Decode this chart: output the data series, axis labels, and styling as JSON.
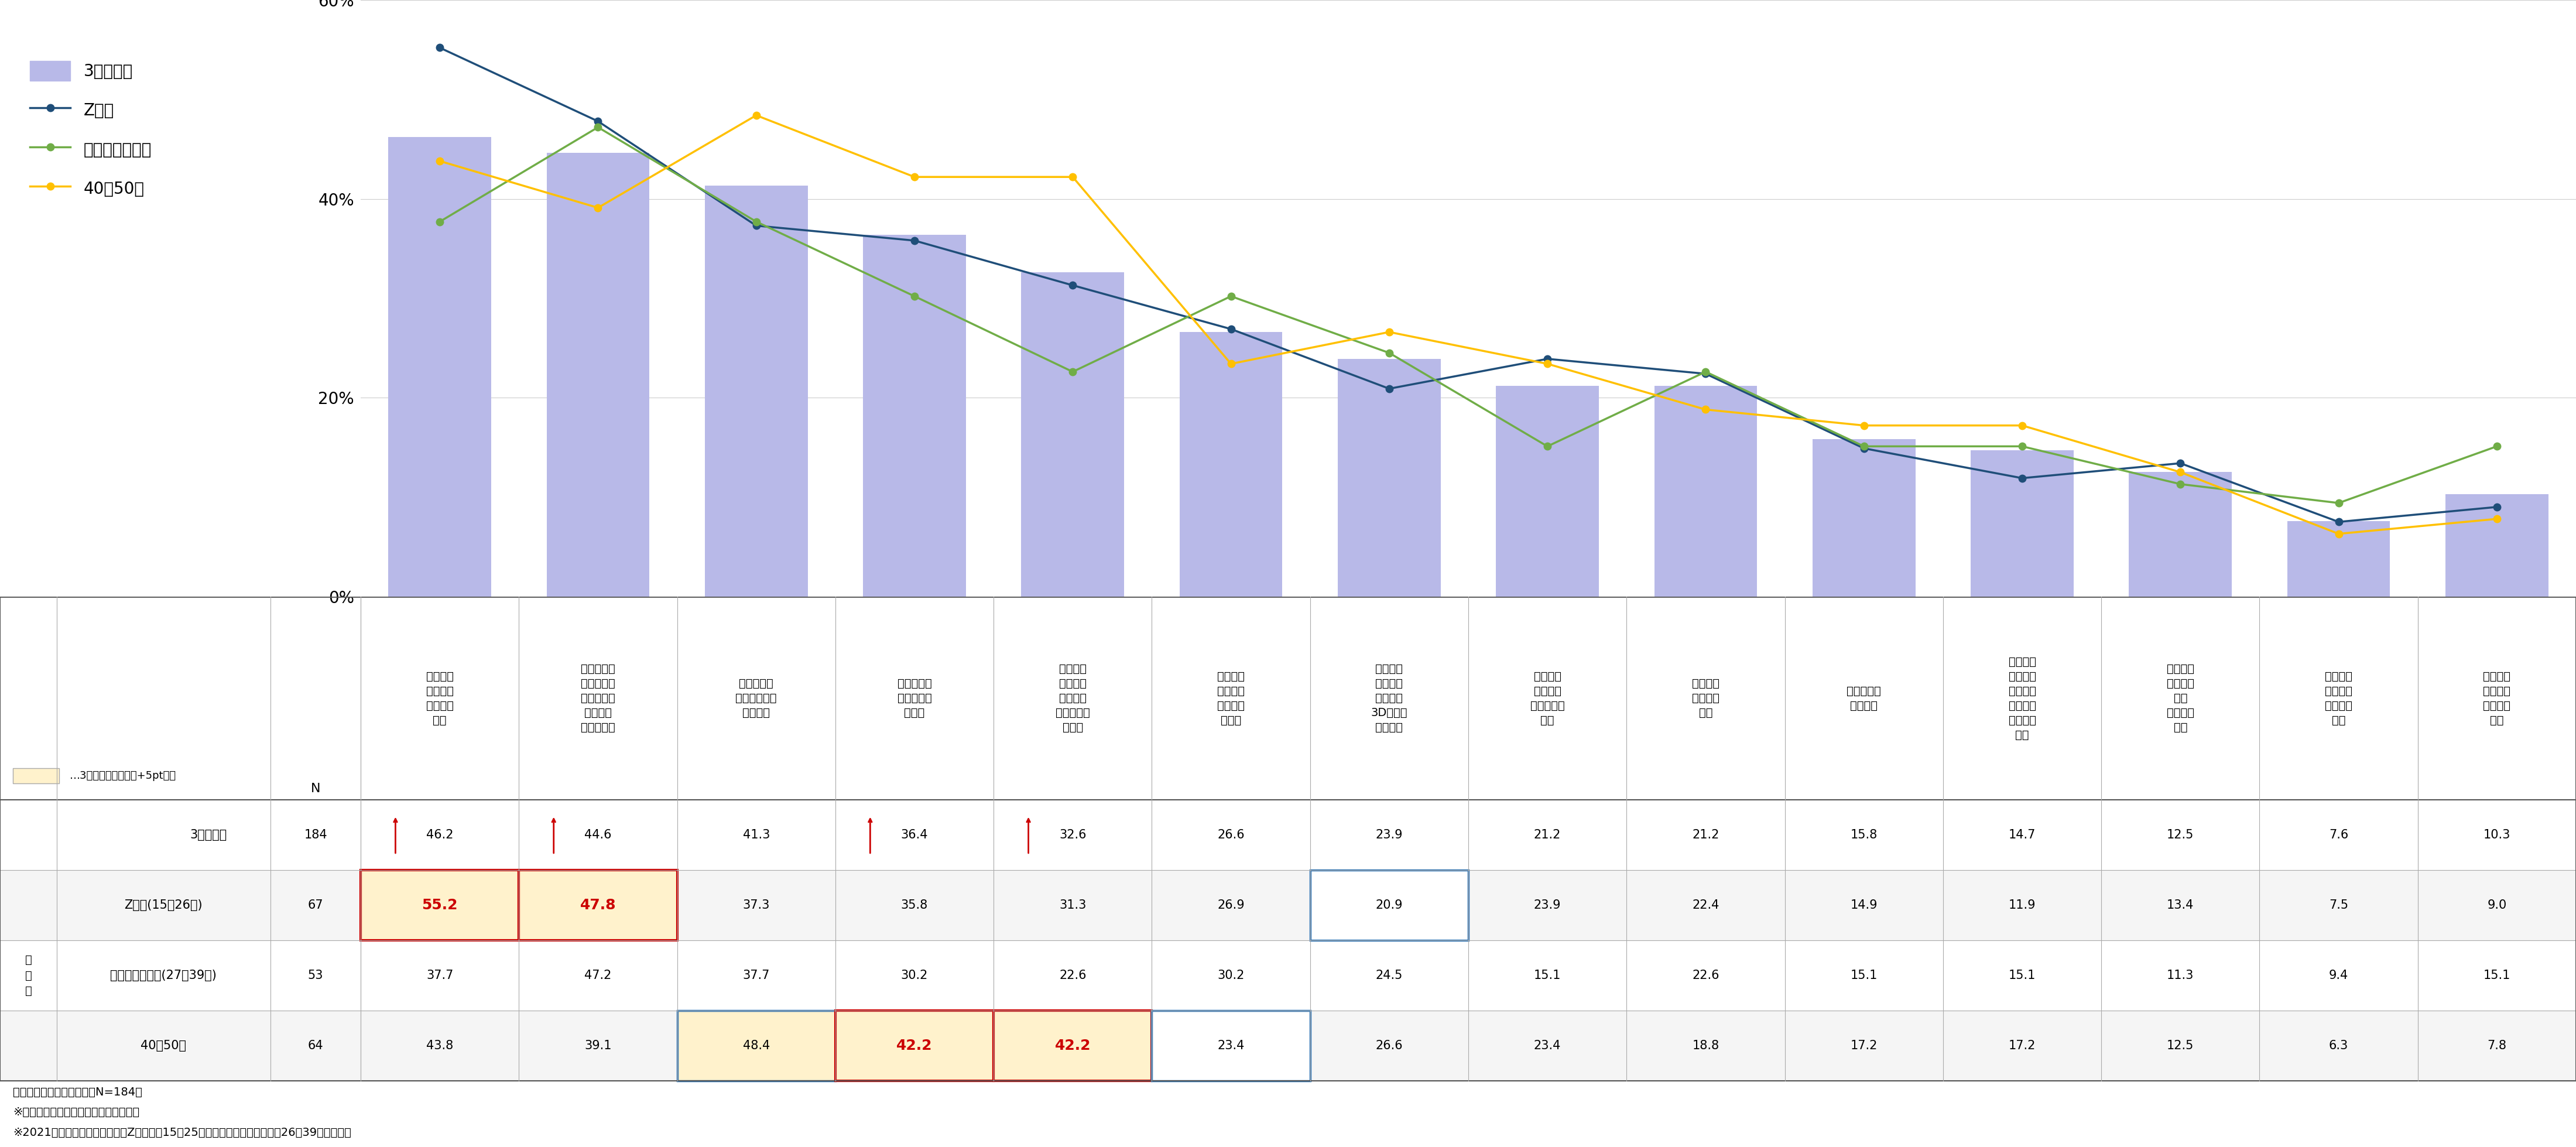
{
  "bar_values": [
    46.2,
    44.6,
    41.3,
    36.4,
    32.6,
    26.6,
    23.9,
    21.2,
    21.2,
    15.8,
    14.7,
    12.5,
    7.6,
    10.3
  ],
  "z_values": [
    55.2,
    47.8,
    37.3,
    35.8,
    31.3,
    26.9,
    20.9,
    23.9,
    22.4,
    14.9,
    11.9,
    13.4,
    7.5,
    9.0
  ],
  "millennial_values": [
    37.7,
    47.2,
    37.7,
    30.2,
    22.6,
    30.2,
    24.5,
    15.1,
    22.6,
    15.1,
    15.1,
    11.3,
    9.4,
    15.1
  ],
  "forties_values": [
    43.8,
    39.1,
    48.4,
    42.2,
    42.2,
    23.4,
    26.6,
    23.4,
    18.8,
    17.2,
    17.2,
    12.5,
    6.3,
    7.8
  ],
  "bar_color": "#b8b9e8",
  "z_color": "#1f4e79",
  "millennial_color": "#70ad47",
  "forties_color": "#ffc000",
  "y_max": 60,
  "y_ticks": [
    0,
    20,
    40,
    60
  ],
  "cat_labels": [
    "アバター\nの作成・\nカスタマ\nイズ",
    "他想空間上\nでの、ユー\nザー同士の\nコミュニ\nケーション",
    "非日常との\n出会い・異空\n間の体感",
    "自分に似せ\nたアバター\nの作成",
    "他想空間\n上に再現\nされた街\nやスポット\nの散策",
    "他想空間\n上でのイ\nベントへ\nの参加",
    "他想空間\n上で利用\nできる、\n3Dアイテ\nムの購入",
    "アバター\nで、乗り\n物にのって\n移動",
    "空間の設\n計・デザ\nイン",
    "他想空間上\nでの会議",
    "他想空間\n上で、デ\nジタル作\n品・コン\nテンツの\n購入",
    "他想空間\n上で、リ\nアル\nショッピ\nング",
    "パフォー\nマーへの\n投げ錢・\n応援",
    "この中に\nあてはま\nるものは\nない"
  ],
  "row_labels": [
    "3世代全体",
    "Z世代(15～26歳)",
    "ミレニアル世代(27～39歳)",
    "40～50代"
  ],
  "n_values": [
    184,
    67,
    53,
    64
  ],
  "table_values": [
    [
      46.2,
      44.6,
      41.3,
      36.4,
      32.6,
      26.6,
      23.9,
      21.2,
      21.2,
      15.8,
      14.7,
      12.5,
      7.6,
      10.3
    ],
    [
      55.2,
      47.8,
      37.3,
      35.8,
      31.3,
      26.9,
      20.9,
      23.9,
      22.4,
      14.9,
      11.9,
      13.4,
      7.5,
      9.0
    ],
    [
      37.7,
      47.2,
      37.7,
      30.2,
      22.6,
      30.2,
      24.5,
      15.1,
      22.6,
      15.1,
      15.1,
      11.3,
      9.4,
      15.1
    ],
    [
      43.8,
      39.1,
      48.4,
      42.2,
      42.2,
      23.4,
      26.6,
      23.4,
      18.8,
      17.2,
      17.2,
      12.5,
      6.3,
      7.8
    ]
  ],
  "notes": [
    "基数：メタバース体験者（N=184）",
    "※項目は全体のスコアで降順に並び替え",
    "※2021年の年齢区分について、Z世代は、15～25歳」、ミレニアル世代は、26～39歳」で設定"
  ],
  "legend_note": "…3世代全体と比べて+5pt以上"
}
